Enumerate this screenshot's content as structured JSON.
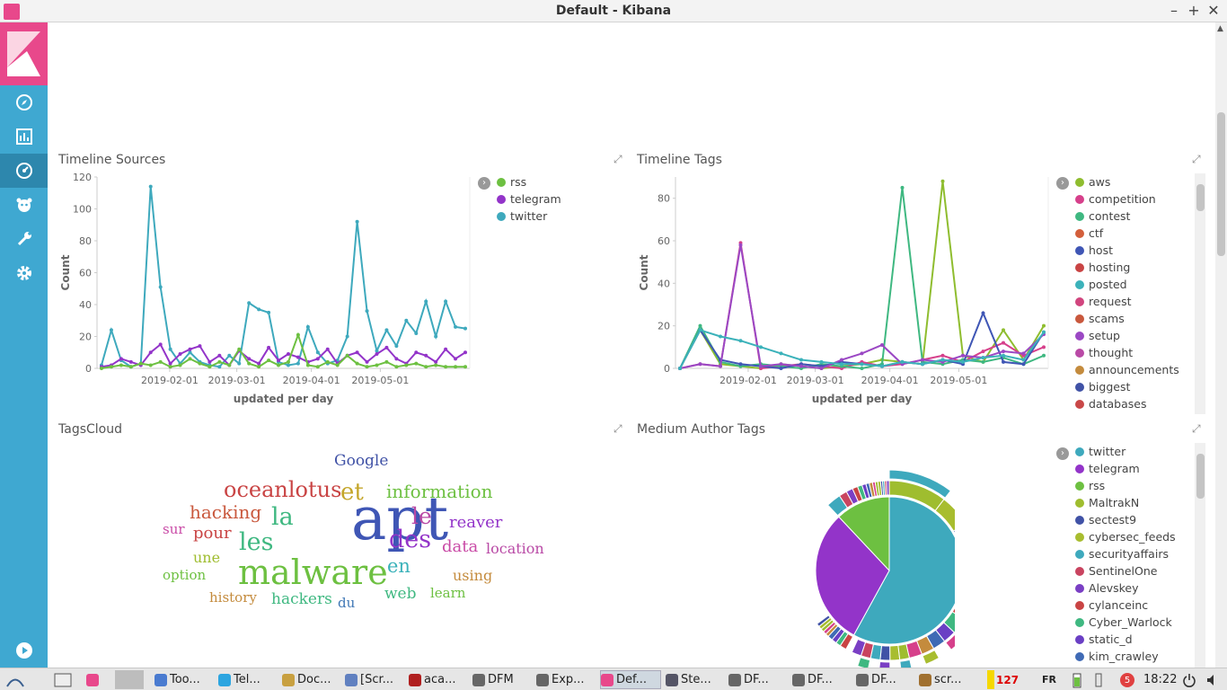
{
  "window": {
    "title": "Default - Kibana"
  },
  "sidebar": {
    "items": [
      {
        "icon": "discover-icon"
      },
      {
        "icon": "visualize-icon"
      },
      {
        "icon": "dashboard-icon"
      },
      {
        "icon": "timelion-icon"
      },
      {
        "icon": "dev-tools-icon"
      },
      {
        "icon": "management-icon"
      },
      {
        "icon": "collapse-play-icon"
      }
    ]
  },
  "panels": {
    "timeline_sources": {
      "title": "Timeline Sources",
      "legend": [
        {
          "label": "rss",
          "color": "#6dc041"
        },
        {
          "label": "telegram",
          "color": "#9334c9"
        },
        {
          "label": "twitter",
          "color": "#3ea9bd"
        }
      ]
    },
    "timeline_tags": {
      "title": "Timeline Tags",
      "legend": [
        {
          "label": "aws",
          "color": "#8fbd2f"
        },
        {
          "label": "competition",
          "color": "#d6408b"
        },
        {
          "label": "contest",
          "color": "#3fb881"
        },
        {
          "label": "ctf",
          "color": "#d35f3b"
        },
        {
          "label": "host",
          "color": "#3f56b5"
        },
        {
          "label": "hosting",
          "color": "#c94444"
        },
        {
          "label": "posted",
          "color": "#3bb2ba"
        },
        {
          "label": "request",
          "color": "#d1457e"
        },
        {
          "label": "scams",
          "color": "#c9583d"
        },
        {
          "label": "setup",
          "color": "#9b48c4"
        },
        {
          "label": "thought",
          "color": "#b94aa6"
        },
        {
          "label": "announcements",
          "color": "#c48b3d"
        },
        {
          "label": "biggest",
          "color": "#4052a6"
        },
        {
          "label": "databases",
          "color": "#c94848"
        }
      ]
    },
    "tags_cloud": {
      "title": "TagsCloud",
      "words": [
        {
          "text": "apt",
          "color": "#3f56b5"
        },
        {
          "text": "malware",
          "color": "#6dc041"
        },
        {
          "text": "oceanlotus",
          "color": "#c94444"
        },
        {
          "text": "Google",
          "color": "#4052a6"
        },
        {
          "text": "et",
          "color": "#c4a62b"
        },
        {
          "text": "information",
          "color": "#6dc041"
        },
        {
          "text": "hacking",
          "color": "#c9583d"
        },
        {
          "text": "la",
          "color": "#3fb881"
        },
        {
          "text": "le",
          "color": "#b94aa6"
        },
        {
          "text": "reaver",
          "color": "#9334c9"
        },
        {
          "text": "sur",
          "color": "#c94aa6"
        },
        {
          "text": "pour",
          "color": "#c94444"
        },
        {
          "text": "les",
          "color": "#3fb881"
        },
        {
          "text": "des",
          "color": "#9334c9"
        },
        {
          "text": "data",
          "color": "#c94aa6"
        },
        {
          "text": "location",
          "color": "#b94aa6"
        },
        {
          "text": "une",
          "color": "#9fbd2f"
        },
        {
          "text": "en",
          "color": "#3bb2ba"
        },
        {
          "text": "option",
          "color": "#6dc041"
        },
        {
          "text": "using",
          "color": "#c48b3d"
        },
        {
          "text": "history",
          "color": "#c48b3d"
        },
        {
          "text": "hackers",
          "color": "#3fb881"
        },
        {
          "text": "web",
          "color": "#3fb881"
        },
        {
          "text": "learn",
          "color": "#6dc041"
        },
        {
          "text": "du",
          "color": "#3f77b5"
        }
      ]
    },
    "medium_author_tags": {
      "title": "Medium Author Tags",
      "legend": [
        {
          "label": "twitter",
          "color": "#3ea9bd"
        },
        {
          "label": "telegram",
          "color": "#9334c9"
        },
        {
          "label": "rss",
          "color": "#6dc041"
        },
        {
          "label": "MaltrakN",
          "color": "#9fbd2f"
        },
        {
          "label": "sectest9",
          "color": "#4052a6"
        },
        {
          "label": "cybersec_feeds",
          "color": "#a8bd2f"
        },
        {
          "label": "securityaffairs",
          "color": "#3ea9bd"
        },
        {
          "label": "SentinelOne",
          "color": "#c94460"
        },
        {
          "label": "Alevskey",
          "color": "#7a3fc4"
        },
        {
          "label": "cylanceinc",
          "color": "#c94444"
        },
        {
          "label": "Cyber_Warlock",
          "color": "#3fb881"
        },
        {
          "label": "static_d",
          "color": "#6a3fc4"
        },
        {
          "label": "kim_crawley",
          "color": "#3f6ab5"
        }
      ]
    }
  },
  "chart_data": [
    {
      "type": "line",
      "title": "Timeline Sources",
      "xlabel": "updated per day",
      "ylabel": "Count",
      "x_ticks": [
        "2019-02-01",
        "2019-03-01",
        "2019-04-01",
        "2019-05-01"
      ],
      "y_ticks": [
        0,
        20,
        40,
        60,
        80,
        100,
        120
      ],
      "ylim": [
        0,
        120
      ],
      "legend_position": "right",
      "series": [
        {
          "name": "twitter",
          "color": "#3ea9bd",
          "values": [
            2,
            24,
            5,
            1,
            3,
            114,
            51,
            12,
            3,
            10,
            4,
            2,
            1,
            8,
            3,
            41,
            37,
            35,
            4,
            2,
            3,
            26,
            10,
            3,
            5,
            20,
            92,
            36,
            11,
            24,
            14,
            30,
            22,
            42,
            20,
            42,
            26,
            25
          ]
        },
        {
          "name": "telegram",
          "color": "#9334c9",
          "values": [
            1,
            2,
            6,
            4,
            2,
            10,
            15,
            3,
            9,
            12,
            14,
            4,
            8,
            2,
            11,
            6,
            3,
            13,
            5,
            9,
            7,
            4,
            6,
            12,
            3,
            8,
            10,
            4,
            9,
            13,
            6,
            3,
            10,
            8,
            4,
            12,
            6,
            10
          ]
        },
        {
          "name": "rss",
          "color": "#6dc041",
          "values": [
            0,
            1,
            2,
            1,
            3,
            2,
            4,
            1,
            2,
            6,
            3,
            1,
            4,
            2,
            12,
            3,
            1,
            5,
            2,
            4,
            21,
            2,
            1,
            4,
            2,
            8,
            3,
            1,
            2,
            4,
            1,
            2,
            3,
            1,
            2,
            1,
            1,
            1
          ]
        }
      ]
    },
    {
      "type": "line",
      "title": "Timeline Tags",
      "xlabel": "updated per day",
      "ylabel": "Count",
      "x_ticks": [
        "2019-02-01",
        "2019-03-01",
        "2019-04-01",
        "2019-05-01"
      ],
      "y_ticks": [
        0,
        20,
        40,
        60,
        80
      ],
      "ylim": [
        0,
        90
      ],
      "legend_position": "right",
      "series": [
        {
          "name": "aws",
          "color": "#8fbd2f",
          "values": [
            0,
            18,
            2,
            1,
            0,
            2,
            1,
            0,
            1,
            2,
            4,
            3,
            2,
            88,
            6,
            3,
            18,
            4,
            20
          ]
        },
        {
          "name": "competition",
          "color": "#d6408b",
          "values": [
            0,
            2,
            1,
            59,
            0,
            1,
            2,
            1,
            0,
            3,
            1,
            2,
            4,
            6,
            3,
            8,
            12,
            6,
            10
          ]
        },
        {
          "name": "contest",
          "color": "#3fb881",
          "values": [
            0,
            20,
            3,
            1,
            2,
            1,
            0,
            2,
            1,
            0,
            2,
            85,
            3,
            2,
            4,
            3,
            5,
            2,
            6
          ]
        },
        {
          "name": "host",
          "color": "#3f56b5",
          "values": [
            0,
            18,
            4,
            2,
            1,
            0,
            2,
            1,
            3,
            2,
            1,
            3,
            2,
            4,
            2,
            26,
            3,
            2,
            17
          ]
        },
        {
          "name": "setup",
          "color": "#9b48c4",
          "values": [
            0,
            2,
            1,
            58,
            1,
            2,
            1,
            0,
            4,
            7,
            11,
            2,
            4,
            3,
            6,
            5,
            8,
            7,
            16
          ]
        },
        {
          "name": "posted",
          "color": "#3bb2ba",
          "values": [
            0,
            18,
            15,
            13,
            10,
            7,
            4,
            3,
            2,
            2,
            1,
            3,
            2,
            4,
            3,
            5,
            6,
            4,
            17
          ]
        }
      ]
    },
    {
      "type": "pie",
      "title": "Medium Author Tags",
      "legend_position": "right",
      "inner_ring": [
        {
          "label": "twitter",
          "value": 58,
          "color": "#3ea9bd"
        },
        {
          "label": "telegram",
          "value": 30,
          "color": "#9334c9"
        },
        {
          "label": "rss",
          "value": 12,
          "color": "#6dc041"
        }
      ]
    }
  ],
  "taskbar": {
    "items": [
      {
        "label": "Too...",
        "color": "#4a7bd0"
      },
      {
        "label": "Tel...",
        "color": "#2ca5e0"
      },
      {
        "label": "Doc...",
        "color": "#c8a040"
      },
      {
        "label": "[Scr...",
        "color": "#6080c0"
      },
      {
        "label": "aca...",
        "color": "#b02020"
      },
      {
        "label": "DFM",
        "color": "#666"
      },
      {
        "label": "Exp...",
        "color": "#666"
      },
      {
        "label": "Def...",
        "color": "#e8488b"
      },
      {
        "label": "Ste...",
        "color": "#556"
      },
      {
        "label": "DF...",
        "color": "#666"
      },
      {
        "label": "DF...",
        "color": "#666"
      },
      {
        "label": "DF...",
        "color": "#666"
      },
      {
        "label": "scr...",
        "color": "#a07030"
      }
    ],
    "tray": {
      "cpu": "127",
      "lang": "FR",
      "badge": "5",
      "clock": "18:22"
    }
  }
}
